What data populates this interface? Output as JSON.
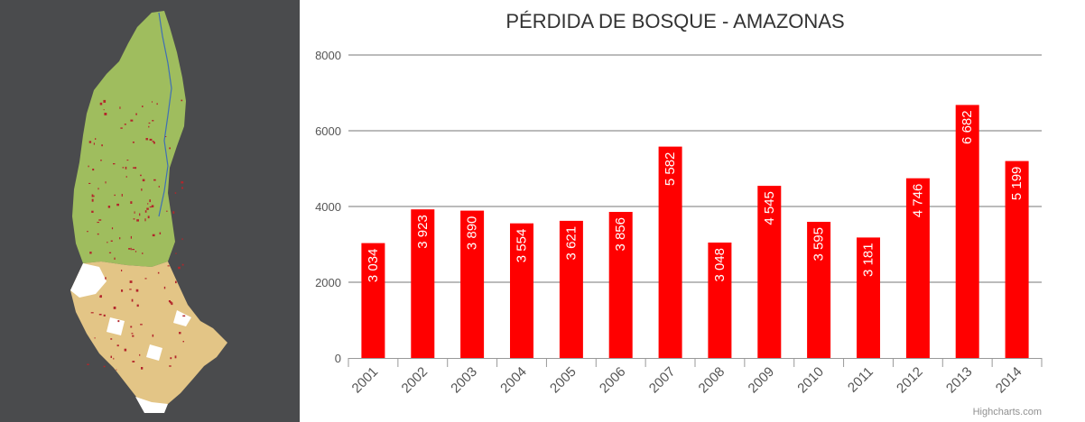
{
  "map": {
    "colors": {
      "background": "#4a4b4d",
      "forest": "#9fbd5e",
      "highland": "#e3c586",
      "non_forest": "#ffffff",
      "loss": "#b3262b",
      "river": "#3f6fb5"
    }
  },
  "chart_data": {
    "type": "bar",
    "title": "PÉRDIDA DE BOSQUE - AMAZONAS",
    "xlabel": "",
    "ylabel": "",
    "categories": [
      "2001",
      "2002",
      "2003",
      "2004",
      "2005",
      "2006",
      "2007",
      "2008",
      "2009",
      "2010",
      "2011",
      "2012",
      "2013",
      "2014"
    ],
    "values": [
      3034,
      3923,
      3890,
      3554,
      3621,
      3856,
      5582,
      3048,
      4545,
      3595,
      3181,
      4746,
      6682,
      5199
    ],
    "data_labels": [
      "3 034",
      "3 923",
      "3 890",
      "3 554",
      "3 621",
      "3 856",
      "5 582",
      "3 048",
      "4 545",
      "3 595",
      "3 181",
      "4 746",
      "6 682",
      "5 199"
    ],
    "yticks": [
      "0",
      "2000",
      "4000",
      "6000",
      "8000"
    ],
    "ylim": [
      0,
      8000
    ],
    "grid": true,
    "legend": "none",
    "bar_color": "#ff0000",
    "credits": "Highcharts.com"
  }
}
